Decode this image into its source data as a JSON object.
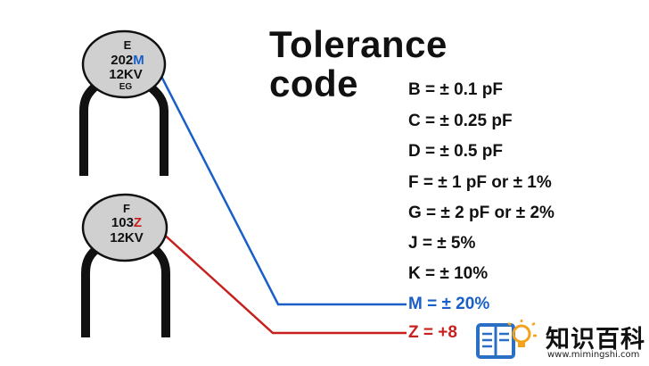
{
  "title_line1": "Tolerance",
  "title_line2": "code",
  "capacitors": [
    {
      "line1": "E",
      "line2_main": "202",
      "line2_code": "M",
      "line3": "12KV",
      "line4": "EG"
    },
    {
      "line1": "F",
      "line2_main": "103",
      "line2_code": "Z",
      "line3": "12KV",
      "line4": ""
    }
  ],
  "codes": [
    {
      "text": "B = ± 0.1 pF",
      "color": "#111111"
    },
    {
      "text": "C = ± 0.25 pF",
      "color": "#111111"
    },
    {
      "text": "D = ± 0.5 pF",
      "color": "#111111"
    },
    {
      "text": "F = ± 1 pF or ± 1%",
      "color": "#111111"
    },
    {
      "text": "G = ± 2 pF or ± 2%",
      "color": "#111111"
    },
    {
      "text": "J = ± 5%",
      "color": "#111111"
    },
    {
      "text": "K = ± 10%",
      "color": "#111111"
    },
    {
      "text": "M = ± 20%",
      "color": "#1a5fc8"
    },
    {
      "text": "Z = +8",
      "color": "#c8201e"
    }
  ],
  "colors": {
    "blue": "#1a5fc8",
    "red": "#c8201e",
    "body": "#d0d0d0",
    "leg": "#2a2a2a",
    "logo_blue": "#2b6fc4",
    "logo_orange": "#f2a21b"
  },
  "logo": {
    "name": "知识百科",
    "url": "www.mimingshi.com",
    "icon": "book-lightbulb-icon"
  }
}
